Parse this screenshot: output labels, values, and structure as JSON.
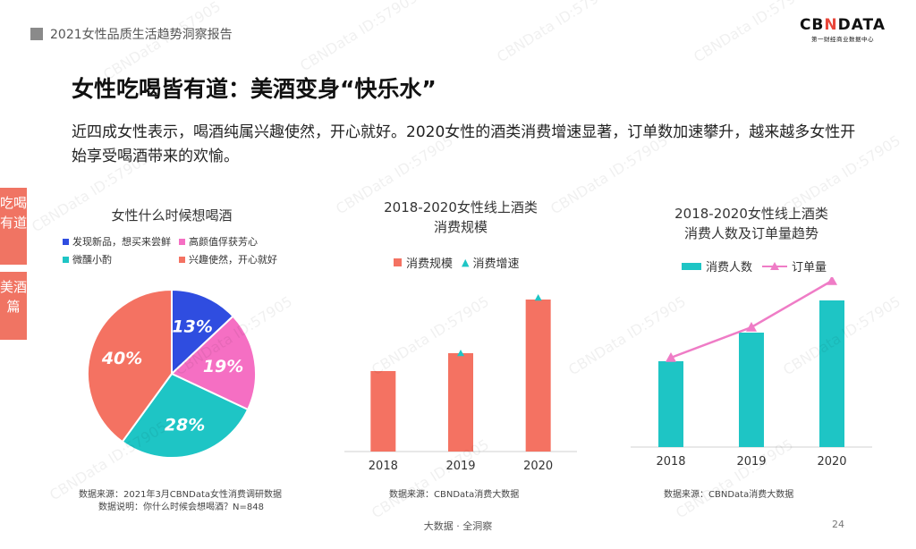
{
  "header": {
    "report_title": "2021女性品质生活趋势洞察报告"
  },
  "logo": {
    "main_left": "CB",
    "main_x": "N",
    "main_right": "DATA",
    "sub": "第一财经商业数据中心"
  },
  "slide": {
    "title": "女性吃喝皆有道：美酒变身“快乐水”",
    "lead": "近四成女性表示，喝酒纯属兴趣使然，开心就好。2020女性的酒类消费增速显著，订单数加速攀升，越来越多女性开始享受喝酒带来的欢愉。"
  },
  "side_tabs": [
    "吃喝有道",
    "美酒篇"
  ],
  "watermark": "CBNData ID:57905",
  "colors": {
    "blue": "#2f4de0",
    "pink": "#f56fc3",
    "teal": "#1ec5c5",
    "coral": "#f47262",
    "line_pink": "#ef7cc6",
    "side": "#f07463"
  },
  "chart_data": [
    {
      "type": "pie",
      "title": "女性什么时候想喝酒",
      "slices": [
        {
          "label": "发现新品，想买来尝鲜",
          "value": 13,
          "display": "13%",
          "color": "#2f4de0"
        },
        {
          "label": "高颜值俘获芳心",
          "value": 19,
          "display": "19%",
          "color": "#f56fc3"
        },
        {
          "label": "微醺小酌",
          "value": 28,
          "display": "28%",
          "color": "#1ec5c5"
        },
        {
          "label": "兴趣使然，开心就好",
          "value": 40,
          "display": "40%",
          "color": "#f47262"
        }
      ],
      "source_lines": [
        "数据来源：2021年3月CBNData女性消费调研数据",
        "数据说明：你什么时候会想喝酒？N=848"
      ]
    },
    {
      "type": "bar",
      "title_lines": [
        "2018-2020女性线上酒类",
        "消费规模"
      ],
      "categories": [
        "2018",
        "2019",
        "2020"
      ],
      "series": [
        {
          "name": "消费规模",
          "kind": "bar",
          "color": "#f47262",
          "values": [
            0.45,
            0.55,
            0.85
          ]
        },
        {
          "name": "消费增速",
          "kind": "marker",
          "color": "#1ec5c5",
          "values": [
            null,
            0.55,
            0.86
          ]
        }
      ],
      "ylim": [
        0,
        1
      ],
      "source": "数据来源：CBNData消费大数据"
    },
    {
      "type": "bar",
      "title_lines": [
        "2018-2020女性线上酒类",
        "消费人数及订单量趋势"
      ],
      "categories": [
        "2018",
        "2019",
        "2020"
      ],
      "series": [
        {
          "name": "消费人数",
          "kind": "bar",
          "color": "#1ec5c5",
          "values": [
            0.48,
            0.64,
            0.82
          ]
        },
        {
          "name": "订单量",
          "kind": "line",
          "color": "#ef7cc6",
          "values": [
            0.5,
            0.67,
            0.93
          ]
        }
      ],
      "ylim": [
        0,
        1
      ],
      "source": "数据来源：CBNData消费大数据"
    }
  ],
  "footer": {
    "text": "大数据 · 全洞察",
    "page": "24"
  }
}
